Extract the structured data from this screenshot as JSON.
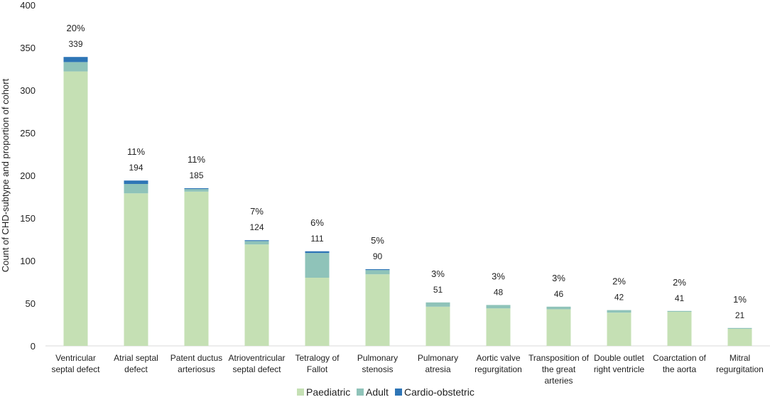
{
  "chart_data": {
    "type": "bar",
    "stacked": true,
    "title": "",
    "xlabel": "",
    "ylabel": "Count of CHD-subtype and proportion of cohort",
    "ylim": [
      0,
      400
    ],
    "yticks": [
      0,
      50,
      100,
      150,
      200,
      250,
      300,
      350,
      400
    ],
    "grid": false,
    "legend_position": "bottom",
    "categories": [
      [
        "Ventricular",
        "septal defect"
      ],
      [
        "Atrial septal",
        "defect"
      ],
      [
        "Patent ductus",
        "arteriosus"
      ],
      [
        "Atrioventricular",
        "septal defect"
      ],
      [
        "Tetralogy of",
        "Fallot"
      ],
      [
        "Pulmonary",
        "stenosis"
      ],
      [
        "Pulmonary",
        "atresia"
      ],
      [
        "Aortic valve",
        "regurgitation"
      ],
      [
        "Transposition of",
        "the great",
        "arteries"
      ],
      [
        "Double outlet",
        "right ventricle"
      ],
      [
        "Coarctation of",
        "the aorta"
      ],
      [
        "Mitral",
        "regurgitation"
      ]
    ],
    "series": [
      {
        "name": "Paediatric",
        "color": "#c5e0b4",
        "values": [
          322,
          179,
          181,
          119,
          80,
          84,
          46,
          44,
          43,
          39,
          40,
          20
        ]
      },
      {
        "name": "Adult",
        "color": "#8fc3b9",
        "values": [
          11,
          11,
          3,
          4,
          29,
          5,
          5,
          4,
          3,
          3,
          1,
          1
        ]
      },
      {
        "name": "Cardio-obstetric",
        "color": "#2e75b6",
        "values": [
          6,
          4,
          1,
          1,
          2,
          1,
          0,
          0,
          0,
          0,
          0,
          0
        ]
      }
    ],
    "totals": [
      "339",
      "194",
      "185",
      "124",
      "111",
      "90",
      "51",
      "48",
      "46",
      "42",
      "41",
      "21"
    ],
    "percentages": [
      "20%",
      "11%",
      "11%",
      "7%",
      "6%",
      "5%",
      "3%",
      "3%",
      "3%",
      "2%",
      "2%",
      "1%"
    ]
  }
}
